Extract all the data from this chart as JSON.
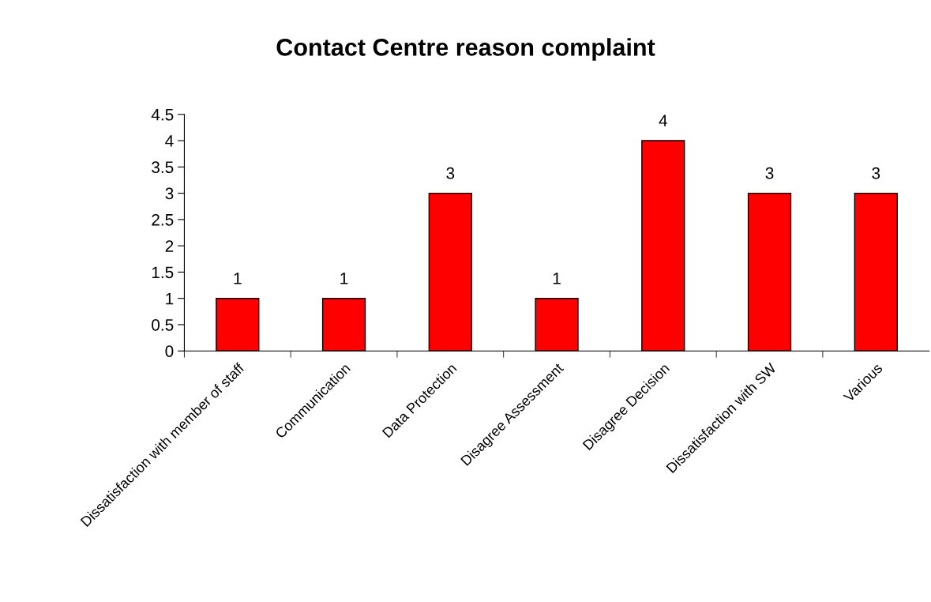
{
  "chart_data": {
    "type": "bar",
    "title": "Contact Centre reason complaint",
    "categories": [
      "Dissatisfaction with member of staff",
      "Communication",
      "Data Protection",
      "Disagree Assessment",
      "Disagree Decision",
      "Dissatisfaction with SW",
      "Various"
    ],
    "values": [
      1,
      1,
      3,
      1,
      4,
      3,
      3
    ],
    "color": "#ff0000",
    "ylim": [
      0,
      4.5
    ],
    "yticks": [
      0,
      0.5,
      1,
      1.5,
      2,
      2.5,
      3,
      3.5,
      4,
      4.5
    ],
    "data_labels": true,
    "grid": false,
    "legend": false
  }
}
